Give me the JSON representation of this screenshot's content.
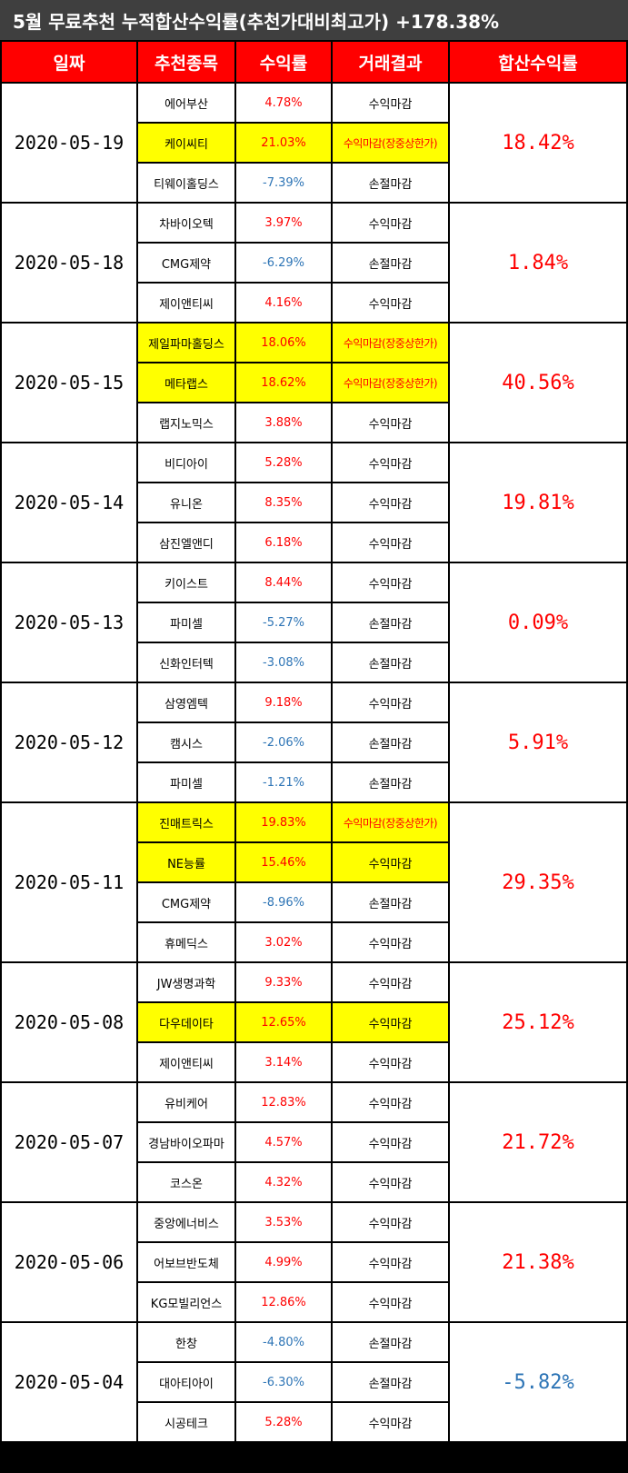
{
  "title": "5월 무료추천 누적합산수익률(추천가대비최고가) +178.38%",
  "headers": [
    "일짜",
    "추천종목",
    "수익률",
    "거래결과",
    "합산수익률"
  ],
  "groups": [
    {
      "date": "2020-05-19",
      "total": "18.42%",
      "total_sign": "pos",
      "rows": [
        {
          "stock": "에어부산",
          "rate": "4.78%",
          "result": "수익마감",
          "hl": false
        },
        {
          "stock": "케이씨티",
          "rate": "21.03%",
          "result": "수익마감(장중상한가)",
          "hl": true
        },
        {
          "stock": "티웨이홀딩스",
          "rate": "-7.39%",
          "result": "손절마감",
          "hl": false
        }
      ]
    },
    {
      "date": "2020-05-18",
      "total": "1.84%",
      "total_sign": "pos",
      "rows": [
        {
          "stock": "차바이오텍",
          "rate": "3.97%",
          "result": "수익마감",
          "hl": false
        },
        {
          "stock": "CMG제약",
          "rate": "-6.29%",
          "result": "손절마감",
          "hl": false
        },
        {
          "stock": "제이앤티씨",
          "rate": "4.16%",
          "result": "수익마감",
          "hl": false
        }
      ]
    },
    {
      "date": "2020-05-15",
      "total": "40.56%",
      "total_sign": "pos",
      "rows": [
        {
          "stock": "제일파마홀딩스",
          "rate": "18.06%",
          "result": "수익마감(장중상한가)",
          "hl": true
        },
        {
          "stock": "메타랩스",
          "rate": "18.62%",
          "result": "수익마감(장중상한가)",
          "hl": true
        },
        {
          "stock": "랩지노믹스",
          "rate": "3.88%",
          "result": "수익마감",
          "hl": false
        }
      ]
    },
    {
      "date": "2020-05-14",
      "total": "19.81%",
      "total_sign": "pos",
      "rows": [
        {
          "stock": "비디아이",
          "rate": "5.28%",
          "result": "수익마감",
          "hl": false
        },
        {
          "stock": "유니온",
          "rate": "8.35%",
          "result": "수익마감",
          "hl": false
        },
        {
          "stock": "삼진엘앤디",
          "rate": "6.18%",
          "result": "수익마감",
          "hl": false
        }
      ]
    },
    {
      "date": "2020-05-13",
      "total": "0.09%",
      "total_sign": "pos",
      "rows": [
        {
          "stock": "키이스트",
          "rate": "8.44%",
          "result": "수익마감",
          "hl": false
        },
        {
          "stock": "파미셀",
          "rate": "-5.27%",
          "result": "손절마감",
          "hl": false
        },
        {
          "stock": "신화인터텍",
          "rate": "-3.08%",
          "result": "손절마감",
          "hl": false
        }
      ]
    },
    {
      "date": "2020-05-12",
      "total": "5.91%",
      "total_sign": "pos",
      "rows": [
        {
          "stock": "삼영엠텍",
          "rate": "9.18%",
          "result": "수익마감",
          "hl": false
        },
        {
          "stock": "캠시스",
          "rate": "-2.06%",
          "result": "손절마감",
          "hl": false
        },
        {
          "stock": "파미셀",
          "rate": "-1.21%",
          "result": "손절마감",
          "hl": false
        }
      ]
    },
    {
      "date": "2020-05-11",
      "total": "29.35%",
      "total_sign": "pos",
      "rows": [
        {
          "stock": "진매트릭스",
          "rate": "19.83%",
          "result": "수익마감(장중상한가)",
          "hl": true
        },
        {
          "stock": "NE능률",
          "rate": "15.46%",
          "result": "수익마감",
          "hl": true
        },
        {
          "stock": "CMG제약",
          "rate": "-8.96%",
          "result": "손절마감",
          "hl": false
        },
        {
          "stock": "휴메딕스",
          "rate": "3.02%",
          "result": "수익마감",
          "hl": false
        }
      ]
    },
    {
      "date": "2020-05-08",
      "total": "25.12%",
      "total_sign": "pos",
      "rows": [
        {
          "stock": "JW생명과학",
          "rate": "9.33%",
          "result": "수익마감",
          "hl": false
        },
        {
          "stock": "다우데이타",
          "rate": "12.65%",
          "result": "수익마감",
          "hl": true
        },
        {
          "stock": "제이앤티씨",
          "rate": "3.14%",
          "result": "수익마감",
          "hl": false
        }
      ]
    },
    {
      "date": "2020-05-07",
      "total": "21.72%",
      "total_sign": "pos",
      "rows": [
        {
          "stock": "유비케어",
          "rate": "12.83%",
          "result": "수익마감",
          "hl": false
        },
        {
          "stock": "경남바이오파마",
          "rate": "4.57%",
          "result": "수익마감",
          "hl": false
        },
        {
          "stock": "코스온",
          "rate": "4.32%",
          "result": "수익마감",
          "hl": false
        }
      ]
    },
    {
      "date": "2020-05-06",
      "total": "21.38%",
      "total_sign": "pos",
      "rows": [
        {
          "stock": "중앙에너비스",
          "rate": "3.53%",
          "result": "수익마감",
          "hl": false
        },
        {
          "stock": "어보브반도체",
          "rate": "4.99%",
          "result": "수익마감",
          "hl": false
        },
        {
          "stock": "KG모빌리언스",
          "rate": "12.86%",
          "result": "수익마감",
          "hl": false
        }
      ]
    },
    {
      "date": "2020-05-04",
      "total": "-5.82%",
      "total_sign": "neg",
      "rows": [
        {
          "stock": "한창",
          "rate": "-4.80%",
          "result": "손절마감",
          "hl": false
        },
        {
          "stock": "대아티아이",
          "rate": "-6.30%",
          "result": "손절마감",
          "hl": false
        },
        {
          "stock": "시공테크",
          "rate": "5.28%",
          "result": "수익마감",
          "hl": false
        }
      ]
    }
  ]
}
